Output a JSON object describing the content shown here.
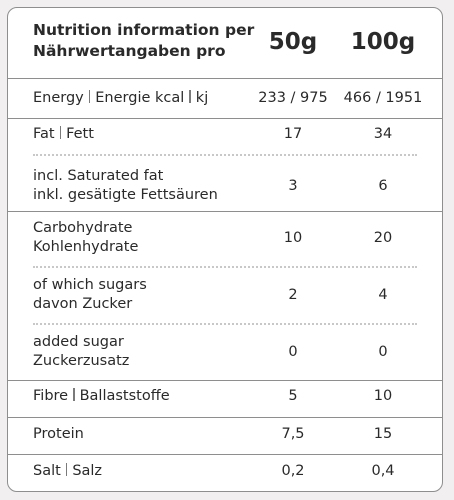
{
  "header": {
    "title_line1": "Nutrition information per",
    "title_line2": "Nährwertangaben pro",
    "col_50": "50g",
    "col_100": "100g"
  },
  "rows": [
    {
      "en": "Energy",
      "de": "Energie kcal",
      "unit": "kj",
      "v50": "233 / 975",
      "v100": "466 / 1951"
    },
    {
      "en": "Fat",
      "de": "Fett",
      "v50": "17",
      "v100": "34"
    },
    {
      "en": "incl. Saturated fat",
      "de": "inkl. gesätigte Fettsäuren",
      "v50": "3",
      "v100": "6"
    },
    {
      "en": "Carbohydrate",
      "de": "Kohlenhydrate",
      "v50": "10",
      "v100": "20"
    },
    {
      "en": "of which sugars",
      "de": "davon Zucker",
      "v50": "2",
      "v100": "4"
    },
    {
      "en": "added sugar",
      "de": "Zuckerzusatz",
      "v50": "0",
      "v100": "0"
    },
    {
      "en": "Fibre",
      "de": "Ballaststoffe",
      "v50": "5",
      "v100": "10"
    },
    {
      "en": "Protein",
      "de": "",
      "v50": "7,5",
      "v100": "15"
    },
    {
      "en": "Salt",
      "de": "Salz",
      "v50": "0,2",
      "v100": "0,4"
    }
  ],
  "colors": {
    "border": "#8e8e8e",
    "text": "#2a2a2a",
    "dots": "#c8c8c8"
  }
}
